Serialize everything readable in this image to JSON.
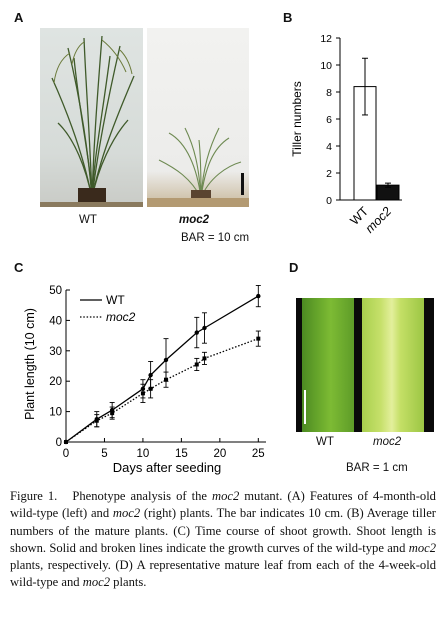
{
  "panels": {
    "A": {
      "letter": "A",
      "wt_label": "WT",
      "mutant_label": "moc2",
      "bar_note": "BAR = 10 cm"
    },
    "B": {
      "letter": "B",
      "ylabel": "Tiller numbers",
      "yticks": [
        "0",
        "2",
        "4",
        "6",
        "8",
        "10",
        "12"
      ]
    },
    "C": {
      "letter": "C",
      "xlabel": "Days after seeding",
      "ylabel": "Plant length (10 cm)",
      "legend_wt": "WT",
      "legend_mut": "moc2",
      "xticks": [
        "0",
        "5",
        "10",
        "15",
        "20",
        "25"
      ],
      "yticks": [
        "0",
        "10",
        "20",
        "30",
        "40",
        "50"
      ]
    },
    "D": {
      "letter": "D",
      "wt_label": "WT",
      "mutant_label": "moc2",
      "bar_note": "BAR = 1 cm"
    }
  },
  "chart_data": [
    {
      "panel": "B",
      "type": "bar",
      "categories": [
        "WT",
        "moc2"
      ],
      "values": [
        8.4,
        1.1
      ],
      "errors": [
        2.1,
        0.15
      ],
      "bar_colors": [
        "#ffffff",
        "#111111"
      ],
      "ylabel": "Tiller numbers",
      "ylim": [
        0,
        12
      ]
    },
    {
      "panel": "C",
      "type": "line",
      "xlabel": "Days after seeding",
      "ylabel": "Plant length (10 cm)",
      "xlim": [
        0,
        26
      ],
      "ylim": [
        0,
        50
      ],
      "series": [
        {
          "name": "WT",
          "style": "solid",
          "x": [
            0,
            4,
            6,
            10,
            11,
            13,
            17,
            18,
            25
          ],
          "y": [
            0,
            7.5,
            10.5,
            17.5,
            22,
            27,
            36,
            37.5,
            48
          ],
          "err": [
            0,
            2.5,
            2.5,
            3,
            4.5,
            7,
            5,
            5,
            3.5
          ]
        },
        {
          "name": "moc2",
          "style": "dotted",
          "x": [
            0,
            4,
            6,
            10,
            11,
            13,
            17,
            18,
            25
          ],
          "y": [
            0,
            7,
            9.5,
            16,
            17.5,
            20.5,
            25.5,
            27.5,
            34
          ],
          "err": [
            0,
            2,
            2,
            3,
            3,
            2.5,
            2,
            2,
            2.5
          ]
        }
      ]
    }
  ],
  "caption": {
    "fig": "Figure 1.",
    "t1": "Phenotype analysis of the ",
    "gene1": "moc2",
    "t2": " mutant. (A) Features of 4-month-old wild-type (left) and ",
    "gene2": "moc2",
    "t3": " (right) plants. The bar indicates 10 cm. (B) Average tiller numbers of the mature plants. (C) Time course of shoot growth. Shoot length is shown. Solid and broken lines indicate the growth curves of the wild-type and ",
    "gene3": "moc2",
    "t4": " plants, respectively. (D) A representative mature leaf from each of the 4-week-old wild-type and ",
    "gene4": "moc2",
    "t5": " plants."
  }
}
